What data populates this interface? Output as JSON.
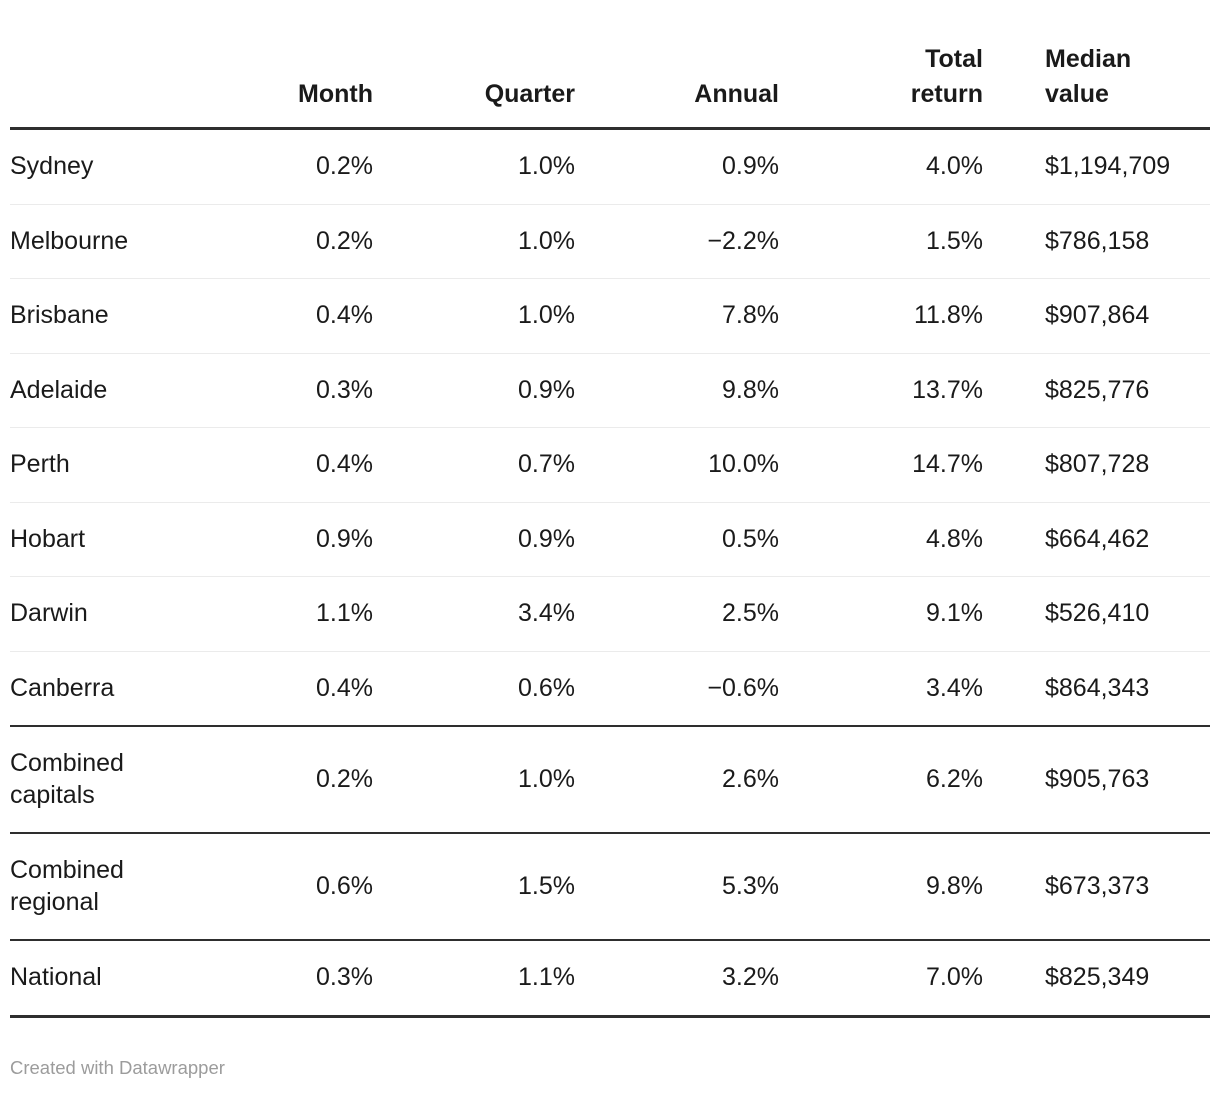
{
  "chart_data": {
    "type": "table",
    "columns": [
      "",
      "Month",
      "Quarter",
      "Annual",
      "Total return",
      "Median value"
    ],
    "column_keys": [
      "month",
      "quarter",
      "annual",
      "total-return",
      "median-value"
    ],
    "rows": [
      {
        "label": "Sydney",
        "cells": [
          "0.2%",
          "1.0%",
          "0.9%",
          "4.0%",
          "$1,194,709"
        ],
        "border_top": "none"
      },
      {
        "label": "Melbourne",
        "cells": [
          "0.2%",
          "1.0%",
          "−2.2%",
          "1.5%",
          "$786,158"
        ],
        "border_top": "light"
      },
      {
        "label": "Brisbane",
        "cells": [
          "0.4%",
          "1.0%",
          "7.8%",
          "11.8%",
          "$907,864"
        ],
        "border_top": "light"
      },
      {
        "label": "Adelaide",
        "cells": [
          "0.3%",
          "0.9%",
          "9.8%",
          "13.7%",
          "$825,776"
        ],
        "border_top": "light"
      },
      {
        "label": "Perth",
        "cells": [
          "0.4%",
          "0.7%",
          "10.0%",
          "14.7%",
          "$807,728"
        ],
        "border_top": "light"
      },
      {
        "label": "Hobart",
        "cells": [
          "0.9%",
          "0.9%",
          "0.5%",
          "4.8%",
          "$664,462"
        ],
        "border_top": "light"
      },
      {
        "label": "Darwin",
        "cells": [
          "1.1%",
          "3.4%",
          "2.5%",
          "9.1%",
          "$526,410"
        ],
        "border_top": "light"
      },
      {
        "label": "Canberra",
        "cells": [
          "0.4%",
          "0.6%",
          "−0.6%",
          "3.4%",
          "$864,343"
        ],
        "border_top": "light"
      },
      {
        "label": "Combined capitals",
        "cells": [
          "0.2%",
          "1.0%",
          "2.6%",
          "6.2%",
          "$905,763"
        ],
        "border_top": "dark"
      },
      {
        "label": "Combined regional",
        "cells": [
          "0.6%",
          "1.5%",
          "5.3%",
          "9.8%",
          "$673,373"
        ],
        "border_top": "dark"
      },
      {
        "label": "National",
        "cells": [
          "0.3%",
          "1.1%",
          "3.2%",
          "7.0%",
          "$825,349"
        ],
        "border_top": "dark"
      }
    ]
  },
  "footer": {
    "credit": "Created with Datawrapper"
  },
  "colors": {
    "heavy_rule": "#2e2e2e",
    "light_rule": "#ebebeb",
    "text": "#1a1a1a",
    "muted": "#9c9c9c"
  }
}
